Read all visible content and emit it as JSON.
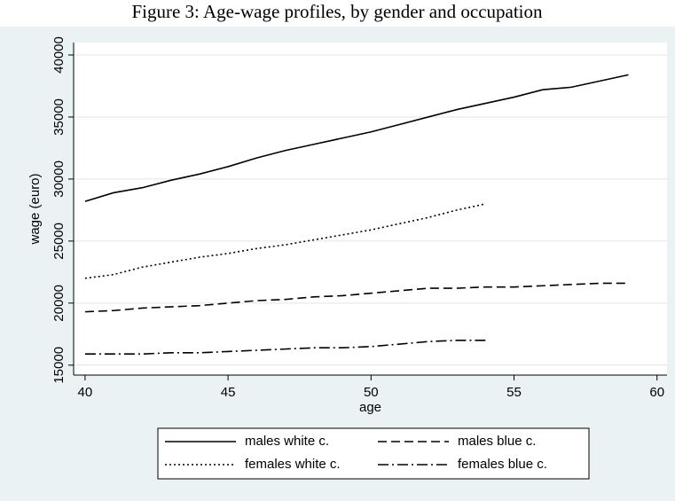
{
  "chart_data": {
    "type": "line",
    "title": "Figure 3: Age-wage profiles, by gender and occupation",
    "x_label": "age",
    "y_label": "wage (euro)",
    "x": [
      40,
      41,
      42,
      43,
      44,
      45,
      46,
      47,
      48,
      49,
      50,
      51,
      52,
      53,
      54,
      55,
      56,
      57,
      58,
      59
    ],
    "series": [
      {
        "name": "males white c.",
        "color": "#000000",
        "dash": "solid",
        "values": [
          28200,
          28900,
          29300,
          29900,
          30400,
          31000,
          31700,
          32300,
          32800,
          33300,
          33800,
          34400,
          35000,
          35600,
          36100,
          36600,
          37200,
          37400,
          37900,
          38400
        ]
      },
      {
        "name": "males blue c.",
        "color": "#000000",
        "dash": "dashed",
        "values": [
          19300,
          19400,
          19600,
          19700,
          19800,
          20000,
          20200,
          20300,
          20500,
          20600,
          20800,
          21000,
          21200,
          21200,
          21300,
          21300,
          21400,
          21500,
          21600,
          21600
        ]
      },
      {
        "name": "females white c.",
        "color": "#000000",
        "dash": "dotted",
        "values": [
          22000,
          22300,
          22900,
          23300,
          23700,
          24000,
          24400,
          24700,
          25100,
          25500,
          25900,
          26400,
          26900,
          27500,
          28000,
          null,
          null,
          null,
          null,
          null
        ]
      },
      {
        "name": "females blue c.",
        "color": "#000000",
        "dash": "dashdot",
        "values": [
          15900,
          15900,
          15900,
          16000,
          16000,
          16100,
          16200,
          16300,
          16400,
          16400,
          16500,
          16700,
          16900,
          17000,
          17000,
          null,
          null,
          null,
          null,
          null
        ]
      }
    ],
    "xlim": [
      39.6,
      60.35
    ],
    "xticks": [
      40,
      45,
      50,
      55,
      60
    ],
    "ylim": [
      14200,
      41000
    ],
    "yticks": [
      15000,
      20000,
      25000,
      30000,
      35000,
      40000
    ],
    "grid": true,
    "legend": "bottom"
  }
}
